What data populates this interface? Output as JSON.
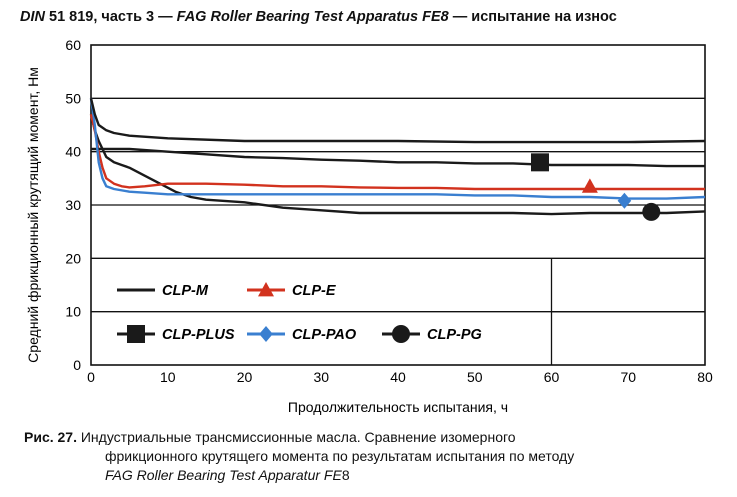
{
  "title": {
    "part1": "DIN",
    "part2": " 51 819, часть 3 — ",
    "part3": "FAG Roller Bearing Test Apparatus FE8",
    "part4": " — испытание на износ"
  },
  "caption": {
    "label": "Рис. 27.",
    "line1": " Индустриальные трансмиссионные масла. Сравнение изомерного",
    "line2": "фрикционного  крутящего момента по результатам испытания по методу",
    "line3_italic": "FAG Roller Bearing Test Apparatur FE",
    "line3_rest": "8"
  },
  "colors": {
    "CLP-M": "#1a1a1a",
    "CLP-E": "#d2321e",
    "CLP-PLUS": "#1a1a1a",
    "CLP-PAO": "#3a7fd0",
    "CLP-PG": "#1a1a1a"
  },
  "chart_data": {
    "type": "line",
    "title": "DIN 51 819, часть 3 — FAG Roller Bearing Test Apparatus FE8 — испытание на износ",
    "xlabel": "Продолжительность испытания, ч",
    "ylabel": "Средний фрикционный крутящий момент, Нм",
    "xlim": [
      0,
      80
    ],
    "ylim": [
      0,
      60
    ],
    "xticks": [
      0,
      10,
      20,
      30,
      40,
      50,
      60,
      70,
      80
    ],
    "yticks": [
      0,
      10,
      20,
      30,
      40,
      50,
      60
    ],
    "grid": "horizontal",
    "legend": "lower-left",
    "series": [
      {
        "name": "CLP-M",
        "marker": "none",
        "x": [
          0,
          0.5,
          1,
          2,
          3,
          4,
          5,
          7,
          9,
          11,
          13,
          15,
          20,
          25,
          30,
          35,
          40,
          45,
          50,
          55,
          60,
          65,
          70,
          75,
          80
        ],
        "y": [
          47,
          44,
          42,
          39,
          38,
          37.5,
          37,
          35.5,
          34,
          32.5,
          31.5,
          31,
          30.5,
          29.5,
          29,
          28.5,
          28.5,
          28.5,
          28.5,
          28.5,
          28.3,
          28.5,
          28.5,
          28.5,
          28.8
        ]
      },
      {
        "name": "CLP-E",
        "marker": "triangle",
        "marker_at": [
          65,
          33.5
        ],
        "x": [
          0,
          0.5,
          1,
          1.5,
          2,
          3,
          4,
          5,
          7,
          10,
          15,
          20,
          25,
          30,
          35,
          40,
          45,
          50,
          55,
          60,
          65,
          70,
          75,
          80
        ],
        "y": [
          47,
          44,
          40,
          37,
          35,
          34,
          33.5,
          33.3,
          33.5,
          34,
          34,
          33.8,
          33.5,
          33.5,
          33.3,
          33.2,
          33.2,
          33,
          33,
          33,
          33,
          33,
          33,
          33
        ]
      },
      {
        "name": "CLP-PLUS",
        "marker": "square",
        "marker_at": [
          58.5,
          38
        ],
        "x": [
          0,
          1,
          2,
          5,
          10,
          15,
          20,
          25,
          30,
          35,
          40,
          45,
          50,
          55,
          60,
          65,
          70,
          75,
          80
        ],
        "y": [
          40.5,
          40.5,
          40.5,
          40.5,
          40,
          39.5,
          39,
          38.8,
          38.5,
          38.3,
          38,
          38,
          37.8,
          37.8,
          37.5,
          37.5,
          37.5,
          37.3,
          37.3
        ]
      },
      {
        "name": "CLP-PAO",
        "marker": "diamond",
        "marker_at": [
          69.5,
          30.8
        ],
        "x": [
          0,
          0.5,
          1,
          1.5,
          2,
          3,
          5,
          7,
          10,
          15,
          20,
          25,
          30,
          35,
          40,
          45,
          50,
          55,
          60,
          65,
          70,
          75,
          80
        ],
        "y": [
          50,
          45,
          38,
          35,
          33.5,
          33,
          32.5,
          32.3,
          32,
          32,
          32,
          32,
          32,
          32,
          32,
          32,
          31.8,
          31.8,
          31.5,
          31.5,
          31.2,
          31.2,
          31.5
        ]
      },
      {
        "name": "CLP-PG",
        "marker": "circle",
        "marker_at": [
          73,
          28.7
        ],
        "x": [
          0,
          0.5,
          1,
          2,
          3,
          5,
          10,
          20,
          30,
          40,
          50,
          60,
          70,
          80
        ],
        "y": [
          50,
          47,
          45,
          44,
          43.5,
          43,
          42.5,
          42,
          42,
          42,
          41.8,
          41.8,
          41.8,
          42
        ]
      }
    ]
  }
}
